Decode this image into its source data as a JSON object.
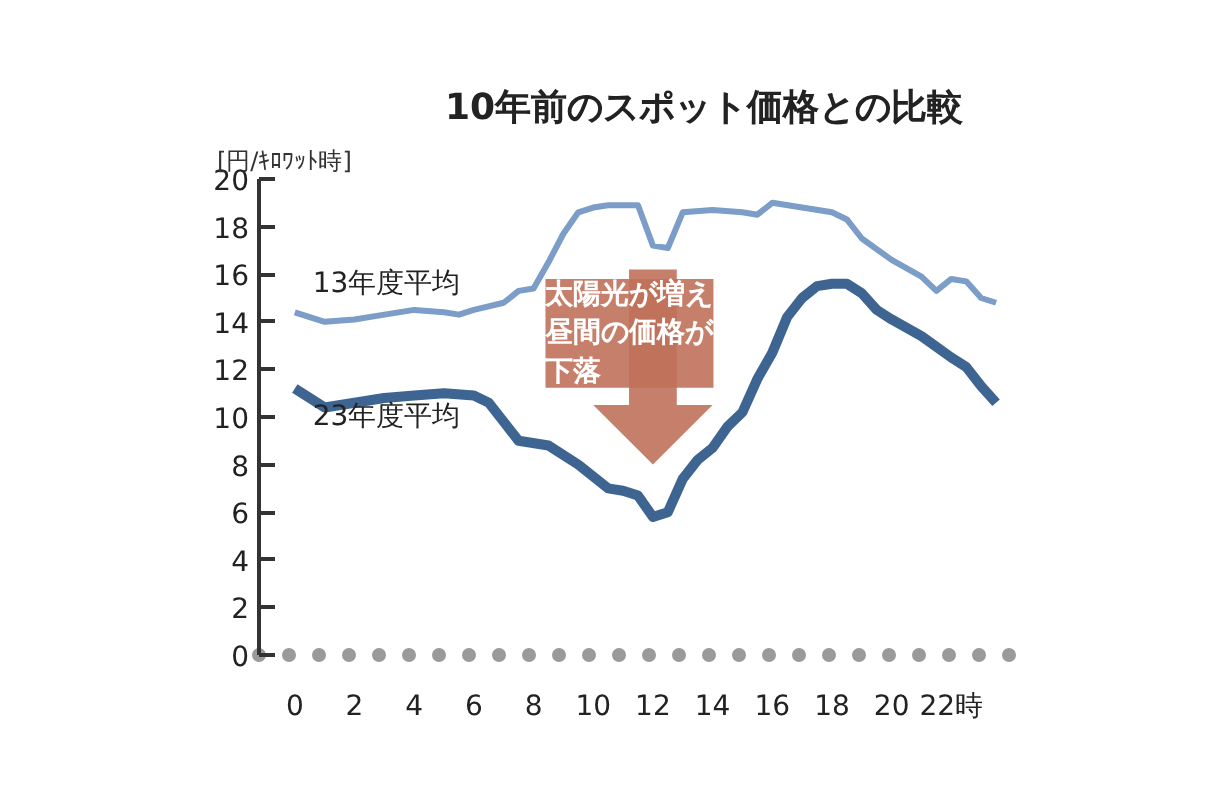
{
  "chart_data": {
    "type": "line",
    "title": "10年前のスポット価格との比較",
    "ylabel": "[円/ｷﾛﾜｯﾄ時]",
    "xlim": [
      -1.2,
      24
    ],
    "ylim": [
      0,
      20
    ],
    "xticks": [
      0,
      2,
      4,
      6,
      8,
      10,
      12,
      14,
      16,
      18,
      20,
      {
        "value": 22,
        "label": "22時"
      }
    ],
    "yticks": [
      0,
      2,
      4,
      6,
      8,
      10,
      12,
      14,
      16,
      18,
      20
    ],
    "grid": false,
    "marker": "none",
    "line_style": "solid",
    "annotations": [
      "太陽光が増え昼間の価格が下落"
    ],
    "series": [
      {
        "name": "13年度平均",
        "color": "#7b9dc8",
        "x": [
          0,
          1,
          2,
          3,
          4,
          5,
          5.5,
          6,
          7,
          7.5,
          8,
          8.5,
          9,
          9.5,
          10,
          10.5,
          11,
          11.5,
          12,
          12.5,
          13,
          14,
          15,
          15.5,
          16,
          17,
          18,
          18.5,
          19,
          20,
          21,
          21.5,
          22,
          22.5,
          23,
          23.5
        ],
        "values": [
          14.4,
          14.0,
          14.1,
          14.3,
          14.5,
          14.4,
          14.3,
          14.5,
          14.8,
          15.3,
          15.4,
          16.5,
          17.7,
          18.6,
          18.8,
          18.9,
          18.9,
          18.9,
          17.2,
          17.1,
          18.6,
          18.7,
          18.6,
          18.5,
          19.0,
          18.8,
          18.6,
          18.3,
          17.5,
          16.6,
          15.9,
          15.3,
          15.8,
          15.7,
          15.0,
          14.8
        ]
      },
      {
        "name": "23年度平均",
        "color": "#3e6592",
        "x": [
          0,
          1,
          2,
          3,
          4,
          5,
          6,
          6.5,
          7,
          7.5,
          8.5,
          9.5,
          10.5,
          11,
          11.5,
          12,
          12.5,
          13,
          13.5,
          14,
          14.5,
          15,
          15.5,
          16,
          16.5,
          17,
          17.5,
          18,
          18.5,
          19,
          19.5,
          20,
          21,
          22,
          22.5,
          23,
          23.5
        ],
        "values": [
          11.2,
          10.4,
          10.6,
          10.8,
          10.9,
          11.0,
          10.9,
          10.6,
          9.8,
          9.0,
          8.8,
          8.0,
          7.0,
          6.9,
          6.7,
          5.8,
          6.0,
          7.4,
          8.2,
          8.7,
          9.6,
          10.2,
          11.6,
          12.7,
          14.2,
          15.0,
          15.5,
          15.6,
          15.6,
          15.2,
          14.5,
          14.1,
          13.4,
          12.5,
          12.1,
          11.3,
          10.6
        ]
      }
    ]
  }
}
